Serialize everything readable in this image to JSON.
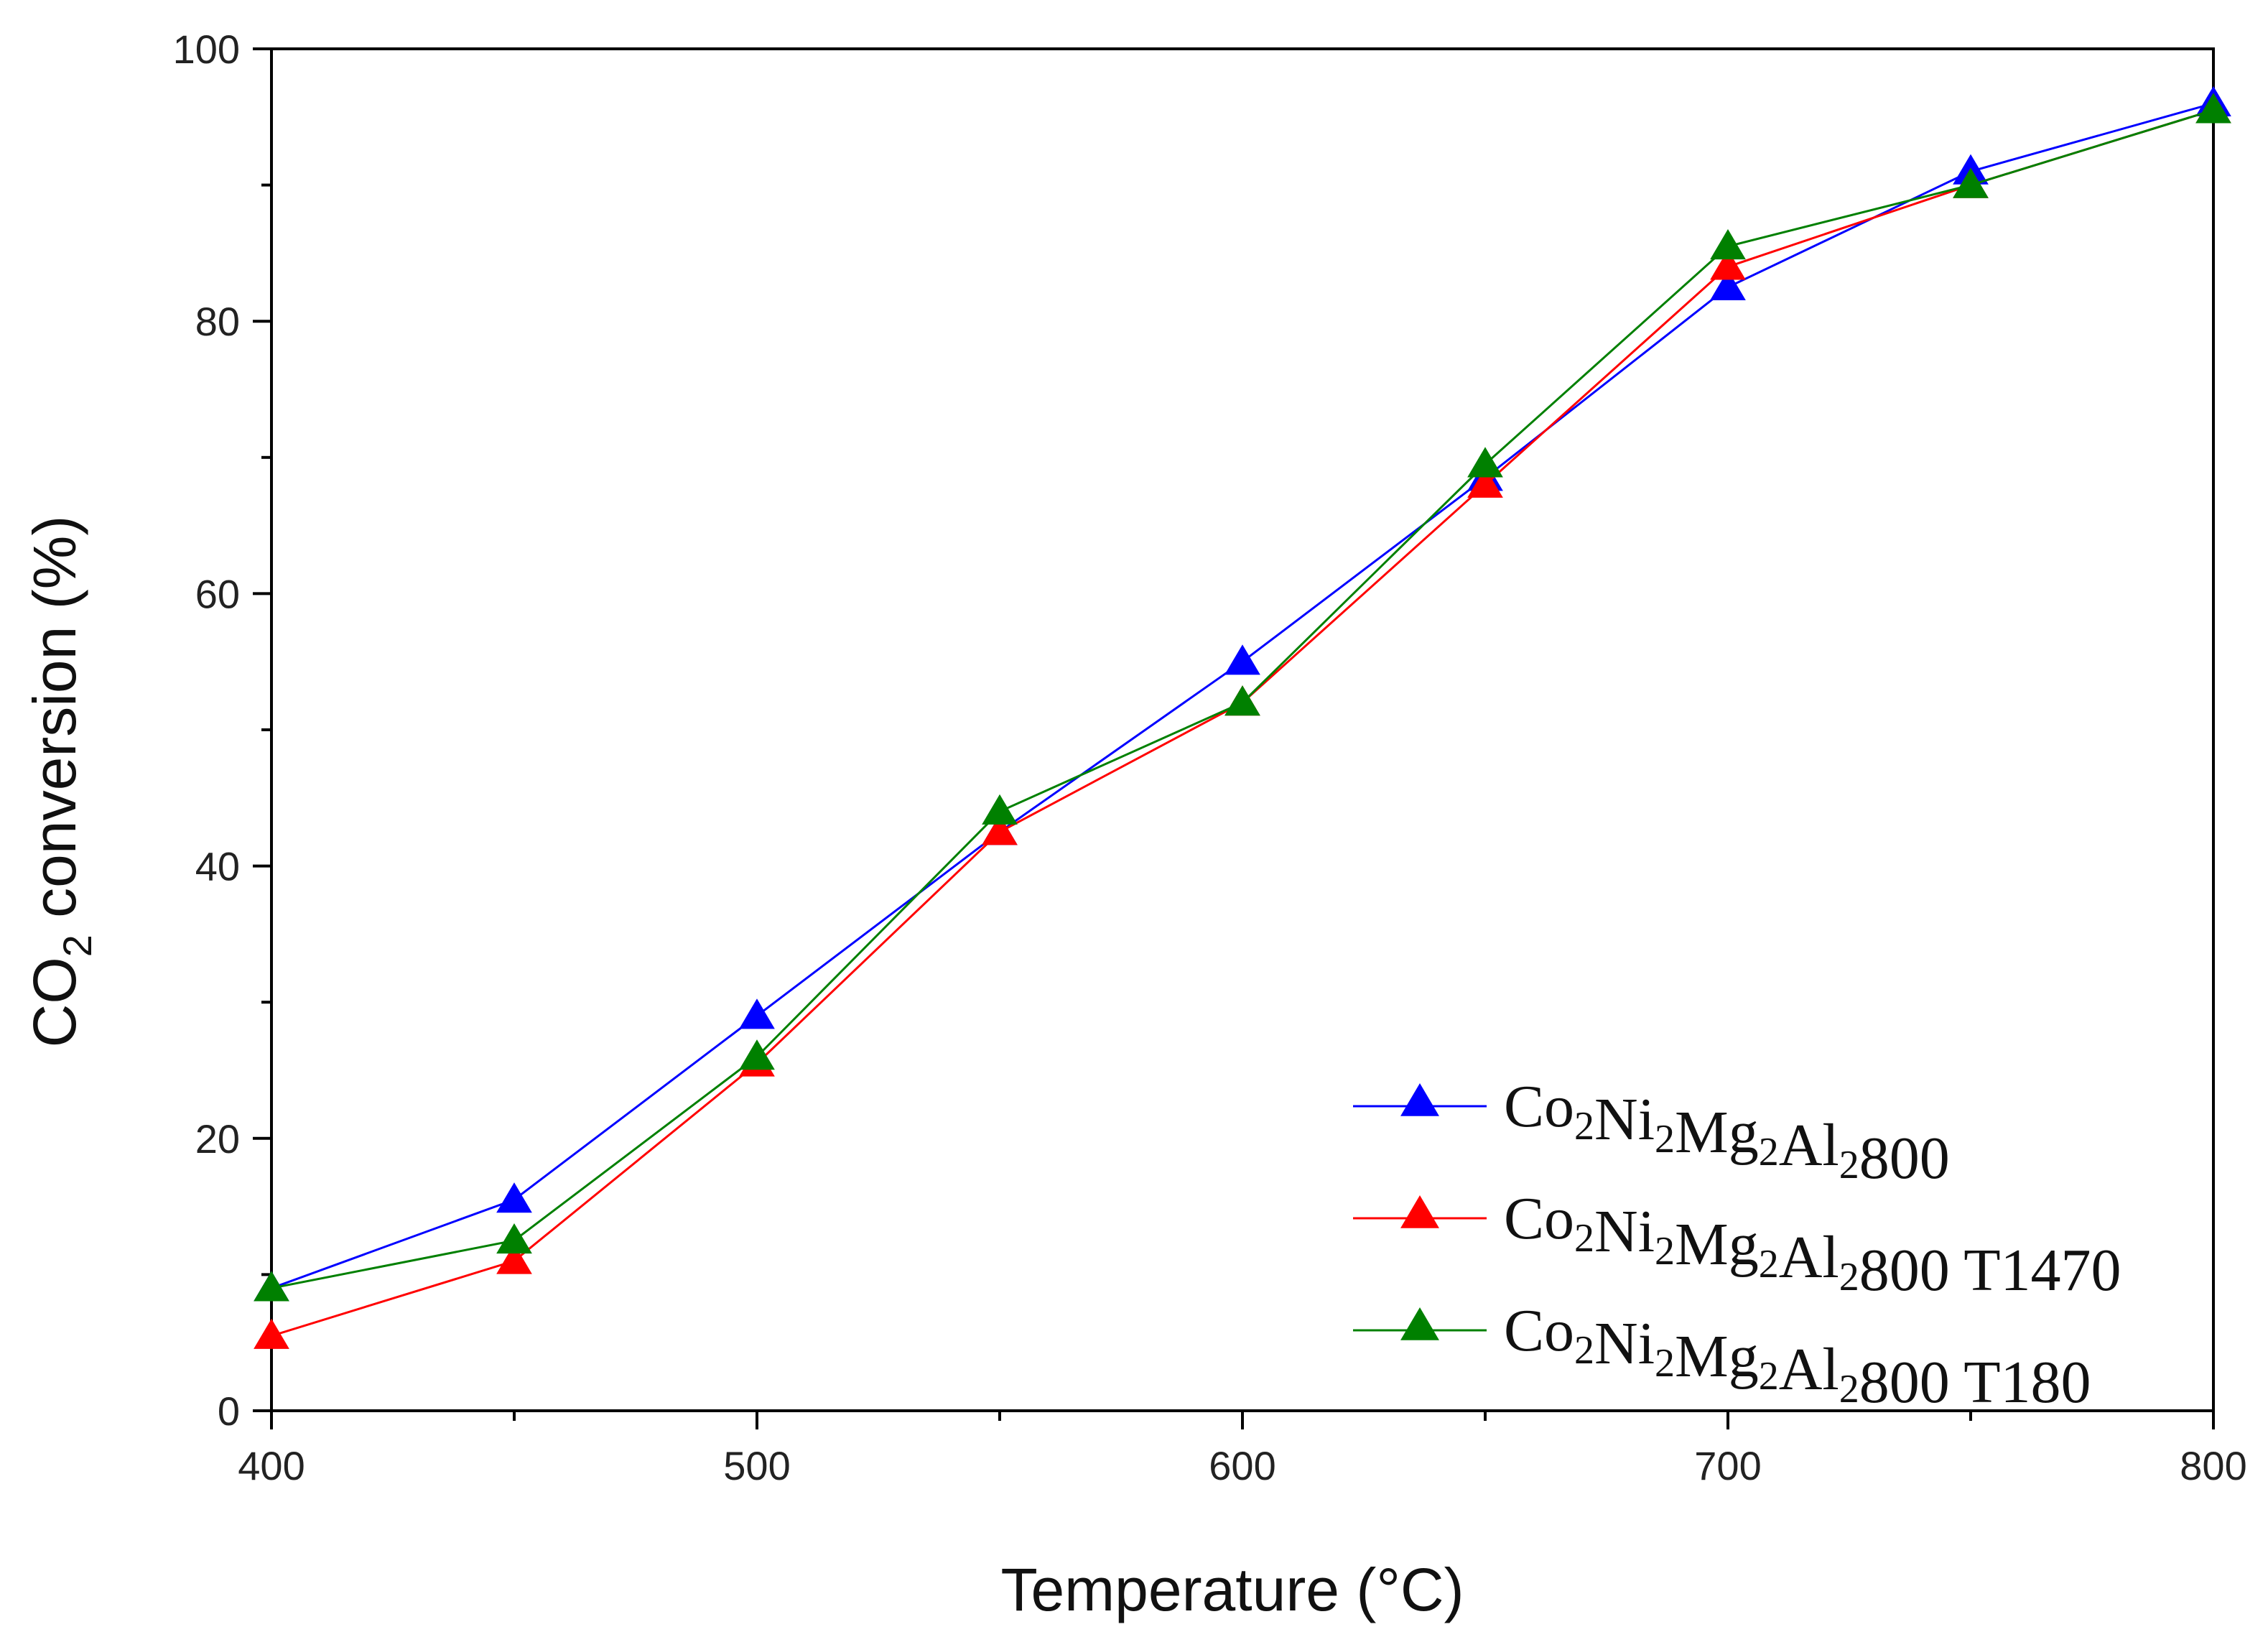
{
  "chart_data": {
    "type": "line",
    "title": "",
    "xlabel": "Temperature (°C)",
    "ylabel": {
      "pre": "CO",
      "sub": "2",
      "post": " conversion (%)"
    },
    "xlim": [
      400,
      800
    ],
    "ylim": [
      0,
      100
    ],
    "x": [
      400,
      450,
      500,
      550,
      600,
      650,
      700,
      750,
      800
    ],
    "x_ticks": [
      400,
      500,
      600,
      700,
      800
    ],
    "y_ticks": [
      0,
      20,
      40,
      60,
      80,
      100
    ],
    "grid": false,
    "legend_position": "bottom-right",
    "marker": "triangle-up",
    "series": [
      {
        "name": "Co2Ni2Mg2Al2800",
        "label_parts": [
          [
            "Co",
            "2"
          ],
          [
            "Ni",
            "2"
          ],
          [
            "Mg",
            "2"
          ],
          [
            "Al",
            "2"
          ],
          [
            "800",
            ""
          ]
        ],
        "color": "#0000ff",
        "values": [
          9,
          15.5,
          29,
          42.5,
          55,
          68.5,
          82.5,
          91,
          96
        ]
      },
      {
        "name": "Co2Ni2Mg2Al2800 T1470",
        "label_parts": [
          [
            "Co",
            "2"
          ],
          [
            "Ni",
            "2"
          ],
          [
            "Mg",
            "2"
          ],
          [
            "Al",
            "2"
          ],
          [
            "800 T1470",
            ""
          ]
        ],
        "color": "#ff0000",
        "values": [
          5.5,
          11,
          25.5,
          42.5,
          52,
          68,
          84,
          90,
          95.5
        ]
      },
      {
        "name": "Co2Ni2Mg2Al2800 T180",
        "label_parts": [
          [
            "Co",
            "2"
          ],
          [
            "Ni",
            "2"
          ],
          [
            "Mg",
            "2"
          ],
          [
            "Al",
            "2"
          ],
          [
            "800 T180",
            ""
          ]
        ],
        "color": "#008000",
        "values": [
          9,
          12.5,
          26,
          44,
          52,
          69.5,
          85.5,
          90,
          95.5
        ]
      }
    ]
  }
}
